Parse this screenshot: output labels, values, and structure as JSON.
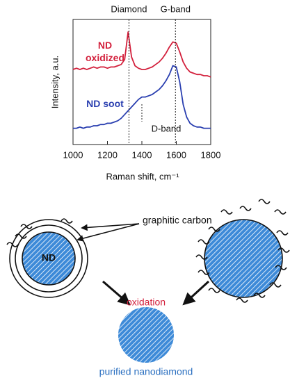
{
  "chart_data": {
    "type": "line",
    "x_label": "Raman shift, cm⁻¹",
    "y_label": "Intensity, a.u.",
    "x": [
      1000,
      1020,
      1040,
      1060,
      1080,
      1100,
      1120,
      1140,
      1160,
      1180,
      1200,
      1220,
      1240,
      1260,
      1280,
      1300,
      1320,
      1340,
      1360,
      1380,
      1400,
      1420,
      1440,
      1460,
      1480,
      1500,
      1520,
      1540,
      1560,
      1580,
      1600,
      1620,
      1640,
      1660,
      1680,
      1700,
      1720,
      1740,
      1760,
      1780,
      1800
    ],
    "series": [
      {
        "name": "ND oxidized",
        "color": "#d3203c",
        "values": [
          60,
          61,
          60,
          61,
          60,
          61,
          62,
          61,
          62,
          62,
          61,
          62,
          62,
          63,
          64,
          68,
          90,
          70,
          63,
          61,
          60,
          60,
          61,
          62,
          64,
          66,
          69,
          73,
          78,
          82,
          81,
          74,
          66,
          61,
          58,
          57,
          56,
          56,
          55,
          55,
          54
        ]
      },
      {
        "name": "ND soot",
        "color": "#2a3fb0",
        "values": [
          13,
          13,
          14,
          13,
          14,
          14,
          15,
          15,
          16,
          16,
          17,
          17,
          18,
          19,
          21,
          24,
          27,
          30,
          33,
          36,
          38,
          38,
          39,
          40,
          42,
          44,
          47,
          51,
          56,
          63,
          62,
          50,
          32,
          22,
          17,
          15,
          14,
          14,
          13,
          13,
          13
        ]
      }
    ],
    "xlim": [
      1000,
      1800
    ],
    "ylim": [
      0,
      100
    ],
    "xticks": [
      1000,
      1200,
      1400,
      1600,
      1800
    ],
    "annotations": [
      {
        "text": "Diamond",
        "x": 1325
      },
      {
        "text": "G-band",
        "x": 1595
      },
      {
        "text": "D-band",
        "x": 1400
      }
    ]
  },
  "diagram": {
    "core_label": "ND",
    "shell_label": "graphitic carbon",
    "process_label": "oxidation",
    "result_label": "purified nanodiamond"
  }
}
